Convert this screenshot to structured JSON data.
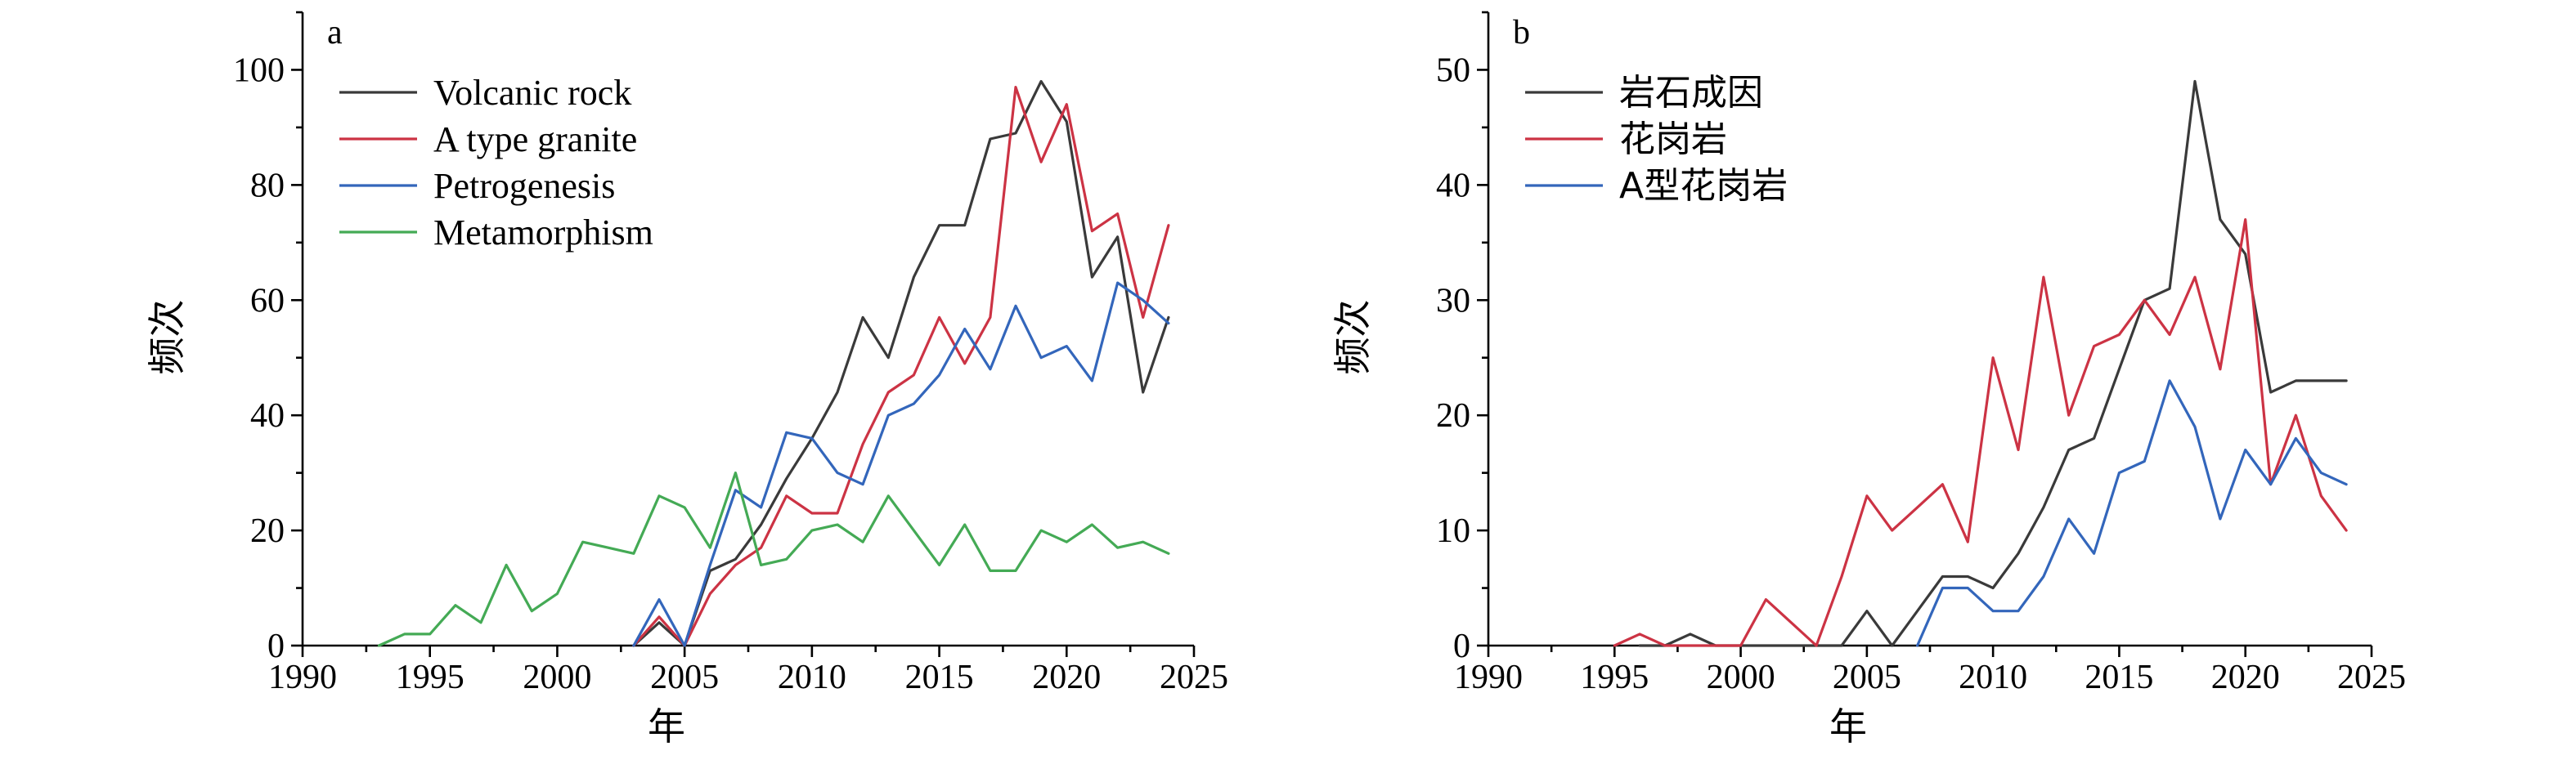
{
  "chart_data": [
    {
      "type": "line",
      "panel_label": "a",
      "xlabel": "年",
      "ylabel": "频次",
      "xlim": [
        1990,
        2025
      ],
      "ylim": [
        0,
        110
      ],
      "xticks": [
        1990,
        1995,
        2000,
        2005,
        2010,
        2015,
        2020,
        2025
      ],
      "yticks": [
        0,
        20,
        40,
        60,
        80,
        100
      ],
      "legend_position": "top-left",
      "grid": false,
      "series": [
        {
          "name": "Volcanic rock",
          "color": "#3a3a3a",
          "points": [
            [
              2003,
              0
            ],
            [
              2004,
              4
            ],
            [
              2005,
              0
            ],
            [
              2006,
              13
            ],
            [
              2007,
              15
            ],
            [
              2008,
              21
            ],
            [
              2009,
              29
            ],
            [
              2010,
              36
            ],
            [
              2011,
              44
            ],
            [
              2012,
              57
            ],
            [
              2013,
              50
            ],
            [
              2014,
              64
            ],
            [
              2015,
              73
            ],
            [
              2016,
              73
            ],
            [
              2017,
              88
            ],
            [
              2018,
              89
            ],
            [
              2019,
              98
            ],
            [
              2020,
              91
            ],
            [
              2021,
              64
            ],
            [
              2022,
              71
            ],
            [
              2023,
              44
            ],
            [
              2024,
              57
            ]
          ]
        },
        {
          "name": "A type granite",
          "color": "#cc3344",
          "points": [
            [
              2003,
              0
            ],
            [
              2004,
              5
            ],
            [
              2005,
              0
            ],
            [
              2006,
              9
            ],
            [
              2007,
              14
            ],
            [
              2008,
              17
            ],
            [
              2009,
              26
            ],
            [
              2010,
              23
            ],
            [
              2011,
              23
            ],
            [
              2012,
              35
            ],
            [
              2013,
              44
            ],
            [
              2014,
              47
            ],
            [
              2015,
              57
            ],
            [
              2016,
              49
            ],
            [
              2017,
              57
            ],
            [
              2018,
              97
            ],
            [
              2019,
              84
            ],
            [
              2020,
              94
            ],
            [
              2021,
              72
            ],
            [
              2022,
              75
            ],
            [
              2023,
              57
            ],
            [
              2024,
              73
            ]
          ]
        },
        {
          "name": "Petrogenesis",
          "color": "#3366bb",
          "points": [
            [
              2003,
              0
            ],
            [
              2004,
              8
            ],
            [
              2005,
              0
            ],
            [
              2006,
              14
            ],
            [
              2007,
              27
            ],
            [
              2008,
              24
            ],
            [
              2009,
              37
            ],
            [
              2010,
              36
            ],
            [
              2011,
              30
            ],
            [
              2012,
              28
            ],
            [
              2013,
              40
            ],
            [
              2014,
              42
            ],
            [
              2015,
              47
            ],
            [
              2016,
              55
            ],
            [
              2017,
              48
            ],
            [
              2018,
              59
            ],
            [
              2019,
              50
            ],
            [
              2020,
              52
            ],
            [
              2021,
              46
            ],
            [
              2022,
              63
            ],
            [
              2023,
              60
            ],
            [
              2024,
              56
            ]
          ]
        },
        {
          "name": "Metamorphism",
          "color": "#44aa55",
          "points": [
            [
              1993,
              0
            ],
            [
              1994,
              2
            ],
            [
              1995,
              2
            ],
            [
              1996,
              7
            ],
            [
              1997,
              4
            ],
            [
              1998,
              14
            ],
            [
              1999,
              6
            ],
            [
              2000,
              9
            ],
            [
              2001,
              18
            ],
            [
              2002,
              17
            ],
            [
              2003,
              16
            ],
            [
              2004,
              26
            ],
            [
              2005,
              24
            ],
            [
              2006,
              17
            ],
            [
              2007,
              30
            ],
            [
              2008,
              14
            ],
            [
              2009,
              15
            ],
            [
              2010,
              20
            ],
            [
              2011,
              21
            ],
            [
              2012,
              18
            ],
            [
              2013,
              26
            ],
            [
              2014,
              20
            ],
            [
              2015,
              14
            ],
            [
              2016,
              21
            ],
            [
              2017,
              13
            ],
            [
              2018,
              13
            ],
            [
              2019,
              20
            ],
            [
              2020,
              18
            ],
            [
              2021,
              21
            ],
            [
              2022,
              17
            ],
            [
              2023,
              18
            ],
            [
              2024,
              16
            ]
          ]
        }
      ]
    },
    {
      "type": "line",
      "panel_label": "b",
      "xlabel": "年",
      "ylabel": "频次",
      "xlim": [
        1990,
        2025
      ],
      "ylim": [
        0,
        55
      ],
      "xticks": [
        1990,
        1995,
        2000,
        2005,
        2010,
        2015,
        2020,
        2025
      ],
      "yticks": [
        0,
        10,
        20,
        30,
        40,
        50
      ],
      "legend_position": "top-left",
      "grid": false,
      "series": [
        {
          "name": "岩石成因",
          "color": "#3a3a3a",
          "points": [
            [
              1996,
              0
            ],
            [
              1997,
              0
            ],
            [
              1998,
              1
            ],
            [
              1999,
              0
            ],
            [
              2000,
              0
            ],
            [
              2001,
              0
            ],
            [
              2002,
              0
            ],
            [
              2003,
              0
            ],
            [
              2004,
              0
            ],
            [
              2005,
              3
            ],
            [
              2006,
              0
            ],
            [
              2007,
              3
            ],
            [
              2008,
              6
            ],
            [
              2009,
              6
            ],
            [
              2010,
              5
            ],
            [
              2011,
              8
            ],
            [
              2012,
              12
            ],
            [
              2013,
              17
            ],
            [
              2014,
              18
            ],
            [
              2015,
              24
            ],
            [
              2016,
              30
            ],
            [
              2017,
              31
            ],
            [
              2018,
              49
            ],
            [
              2019,
              37
            ],
            [
              2020,
              34
            ],
            [
              2021,
              22
            ],
            [
              2022,
              23
            ],
            [
              2023,
              23
            ],
            [
              2024,
              23
            ]
          ]
        },
        {
          "name": "花岗岩",
          "color": "#cc3344",
          "points": [
            [
              1995,
              0
            ],
            [
              1996,
              1
            ],
            [
              1997,
              0
            ],
            [
              1998,
              0
            ],
            [
              1999,
              0
            ],
            [
              2000,
              0
            ],
            [
              2001,
              4
            ],
            [
              2002,
              2
            ],
            [
              2003,
              0
            ],
            [
              2004,
              6
            ],
            [
              2005,
              13
            ],
            [
              2006,
              10
            ],
            [
              2007,
              12
            ],
            [
              2008,
              14
            ],
            [
              2009,
              9
            ],
            [
              2010,
              25
            ],
            [
              2011,
              17
            ],
            [
              2012,
              32
            ],
            [
              2013,
              20
            ],
            [
              2014,
              26
            ],
            [
              2015,
              27
            ],
            [
              2016,
              30
            ],
            [
              2017,
              27
            ],
            [
              2018,
              32
            ],
            [
              2019,
              24
            ],
            [
              2020,
              37
            ],
            [
              2021,
              14
            ],
            [
              2022,
              20
            ],
            [
              2023,
              13
            ],
            [
              2024,
              10
            ]
          ]
        },
        {
          "name": "A型花岗岩",
          "color": "#3366bb",
          "points": [
            [
              2007,
              0
            ],
            [
              2008,
              5
            ],
            [
              2009,
              5
            ],
            [
              2010,
              3
            ],
            [
              2011,
              3
            ],
            [
              2012,
              6
            ],
            [
              2013,
              11
            ],
            [
              2014,
              8
            ],
            [
              2015,
              15
            ],
            [
              2016,
              16
            ],
            [
              2017,
              23
            ],
            [
              2018,
              19
            ],
            [
              2019,
              11
            ],
            [
              2020,
              17
            ],
            [
              2021,
              14
            ],
            [
              2022,
              18
            ],
            [
              2023,
              15
            ],
            [
              2024,
              14
            ]
          ]
        }
      ]
    }
  ]
}
